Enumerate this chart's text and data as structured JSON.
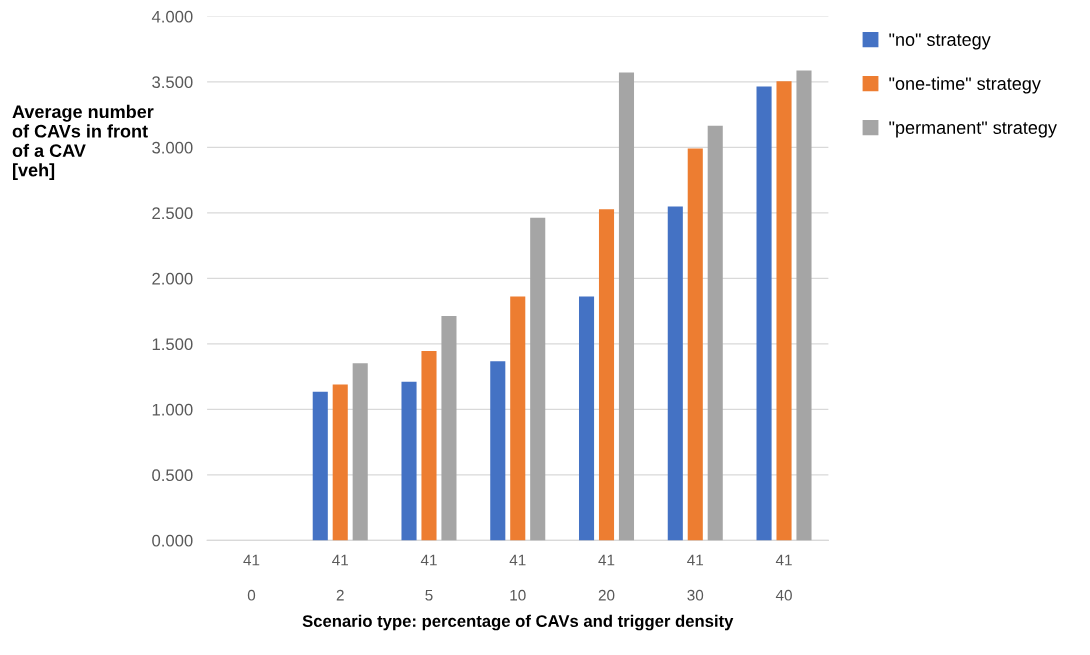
{
  "chart_data": {
    "type": "bar",
    "ylabel": "Average number\nof CAVs in front\nof a CAV\n[veh]",
    "xlabel": "Scenario type: percentage of CAVs and trigger density",
    "categories": [
      "41\n\n0",
      "41\n\n2",
      "41\n\n5",
      "41\n\n10",
      "41\n\n20",
      "41\n\n30",
      "41\n\n40"
    ],
    "series": [
      {
        "name": "\"no\" strategy",
        "color": "#4472c4",
        "values": [
          0,
          1.134,
          1.211,
          1.368,
          1.861,
          2.548,
          3.464
        ]
      },
      {
        "name": "\"one-time\" strategy",
        "color": "#ed7d31",
        "values": [
          0,
          1.189,
          1.445,
          1.861,
          2.527,
          2.992,
          3.504
        ]
      },
      {
        "name": "\"permanent\" strategy",
        "color": "#a5a5a5",
        "values": [
          0,
          1.353,
          1.713,
          2.462,
          3.571,
          3.165,
          3.587
        ]
      }
    ],
    "ylim": [
      0,
      4
    ],
    "yticks": [
      {
        "value": 0,
        "label": "0.000"
      },
      {
        "value": 0.5,
        "label": "0.500"
      },
      {
        "value": 1,
        "label": "1.000"
      },
      {
        "value": 1.5,
        "label": "1.500"
      },
      {
        "value": 2,
        "label": "2.000"
      },
      {
        "value": 2.5,
        "label": "2.500"
      },
      {
        "value": 3,
        "label": "3.000"
      },
      {
        "value": 3.5,
        "label": "3.500"
      },
      {
        "value": 4,
        "label": "4.000"
      }
    ],
    "grid": "y",
    "legend": "top right"
  }
}
